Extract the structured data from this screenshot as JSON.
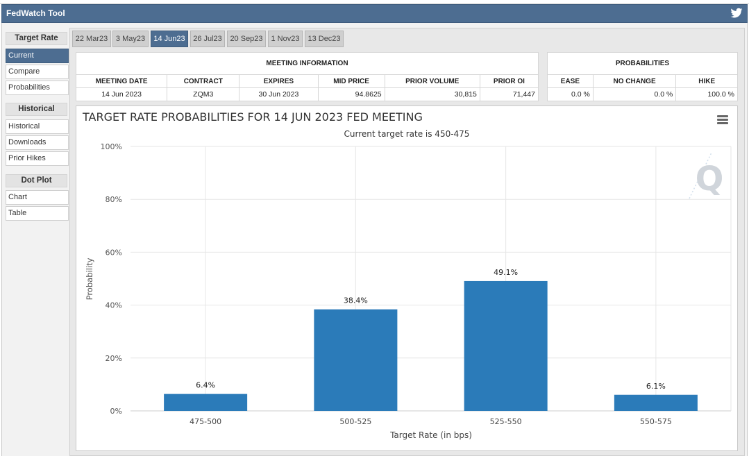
{
  "app": {
    "title": "FedWatch Tool",
    "share_icon": "twitter-bird-icon"
  },
  "sidebar": {
    "groups": [
      {
        "heading": "Target Rate",
        "items": [
          {
            "label": "Current",
            "active": true
          },
          {
            "label": "Compare",
            "active": false
          },
          {
            "label": "Probabilities",
            "active": false
          }
        ]
      },
      {
        "heading": "Historical",
        "items": [
          {
            "label": "Historical",
            "active": false
          },
          {
            "label": "Downloads",
            "active": false
          },
          {
            "label": "Prior Hikes",
            "active": false
          }
        ]
      },
      {
        "heading": "Dot Plot",
        "items": [
          {
            "label": "Chart",
            "active": false
          },
          {
            "label": "Table",
            "active": false
          }
        ]
      }
    ]
  },
  "tabs": [
    {
      "label": "22 Mar23",
      "active": false
    },
    {
      "label": "3 May23",
      "active": false
    },
    {
      "label": "14 Jun23",
      "active": true
    },
    {
      "label": "26 Jul23",
      "active": false
    },
    {
      "label": "20 Sep23",
      "active": false
    },
    {
      "label": "1 Nov23",
      "active": false
    },
    {
      "label": "13 Dec23",
      "active": false
    }
  ],
  "meeting_info": {
    "caption": "MEETING INFORMATION",
    "headers": [
      "MEETING DATE",
      "CONTRACT",
      "EXPIRES",
      "MID PRICE",
      "PRIOR VOLUME",
      "PRIOR OI"
    ],
    "row": [
      "14 Jun 2023",
      "ZQM3",
      "30 Jun 2023",
      "94.8625",
      "30,815",
      "71,447"
    ]
  },
  "probabilities": {
    "caption": "PROBABILITIES",
    "headers": [
      "EASE",
      "NO CHANGE",
      "HIKE"
    ],
    "row": [
      "0.0 %",
      "0.0 %",
      "100.0 %"
    ]
  },
  "chart_menu_icon": "hamburger-menu-icon",
  "watermark": "Q",
  "colors": {
    "accent": "#4d6d91",
    "bar": "#2b7bb9"
  },
  "chart_data": {
    "type": "bar",
    "title": "TARGET RATE PROBABILITIES FOR 14 JUN 2023 FED MEETING",
    "subtitle": "Current target rate is 450-475",
    "xlabel": "Target Rate (in bps)",
    "ylabel": "Probability",
    "categories": [
      "475-500",
      "500-525",
      "525-550",
      "550-575"
    ],
    "values": [
      6.4,
      38.4,
      49.1,
      6.1
    ],
    "data_labels": [
      "6.4%",
      "38.4%",
      "49.1%",
      "6.1%"
    ],
    "y_ticks": [
      "0%",
      "20%",
      "40%",
      "60%",
      "80%",
      "100%"
    ],
    "ylim": [
      0,
      100
    ],
    "grid": true
  }
}
